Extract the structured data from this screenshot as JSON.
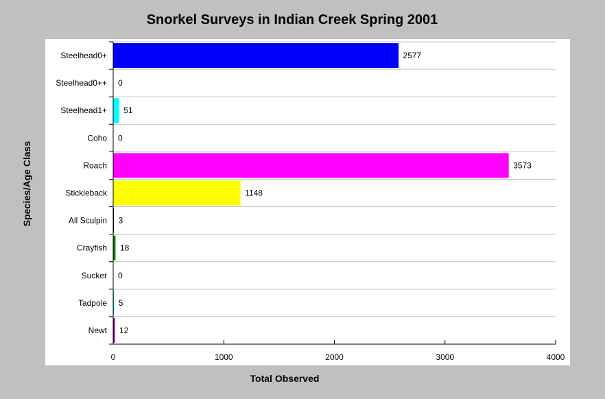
{
  "chart_data": {
    "type": "bar",
    "orientation": "horizontal",
    "title": "Snorkel Surveys in Indian Creek Spring 2001",
    "xlabel": "Total Observed",
    "ylabel": "Species/Age Class",
    "categories": [
      "Steelhead0+",
      "Steelhead0++",
      "Steelhead1+",
      "Coho",
      "Roach",
      "Stickleback",
      "All Sculpin",
      "Crayfish",
      "Sucker",
      "Tadpole",
      "Newt"
    ],
    "values": [
      2577,
      0,
      51,
      0,
      3573,
      1148,
      3,
      18,
      0,
      5,
      12
    ],
    "colors": [
      "#0000ff",
      "#ff0000",
      "#00ffff",
      "#808080",
      "#ff00ff",
      "#ffff00",
      "#000000",
      "#008000",
      "#ff8000",
      "#00c0c0",
      "#800080"
    ],
    "xlim": [
      0,
      4000
    ],
    "xticks": [
      0,
      1000,
      2000,
      3000,
      4000
    ],
    "grid": true,
    "data_labels": true
  }
}
